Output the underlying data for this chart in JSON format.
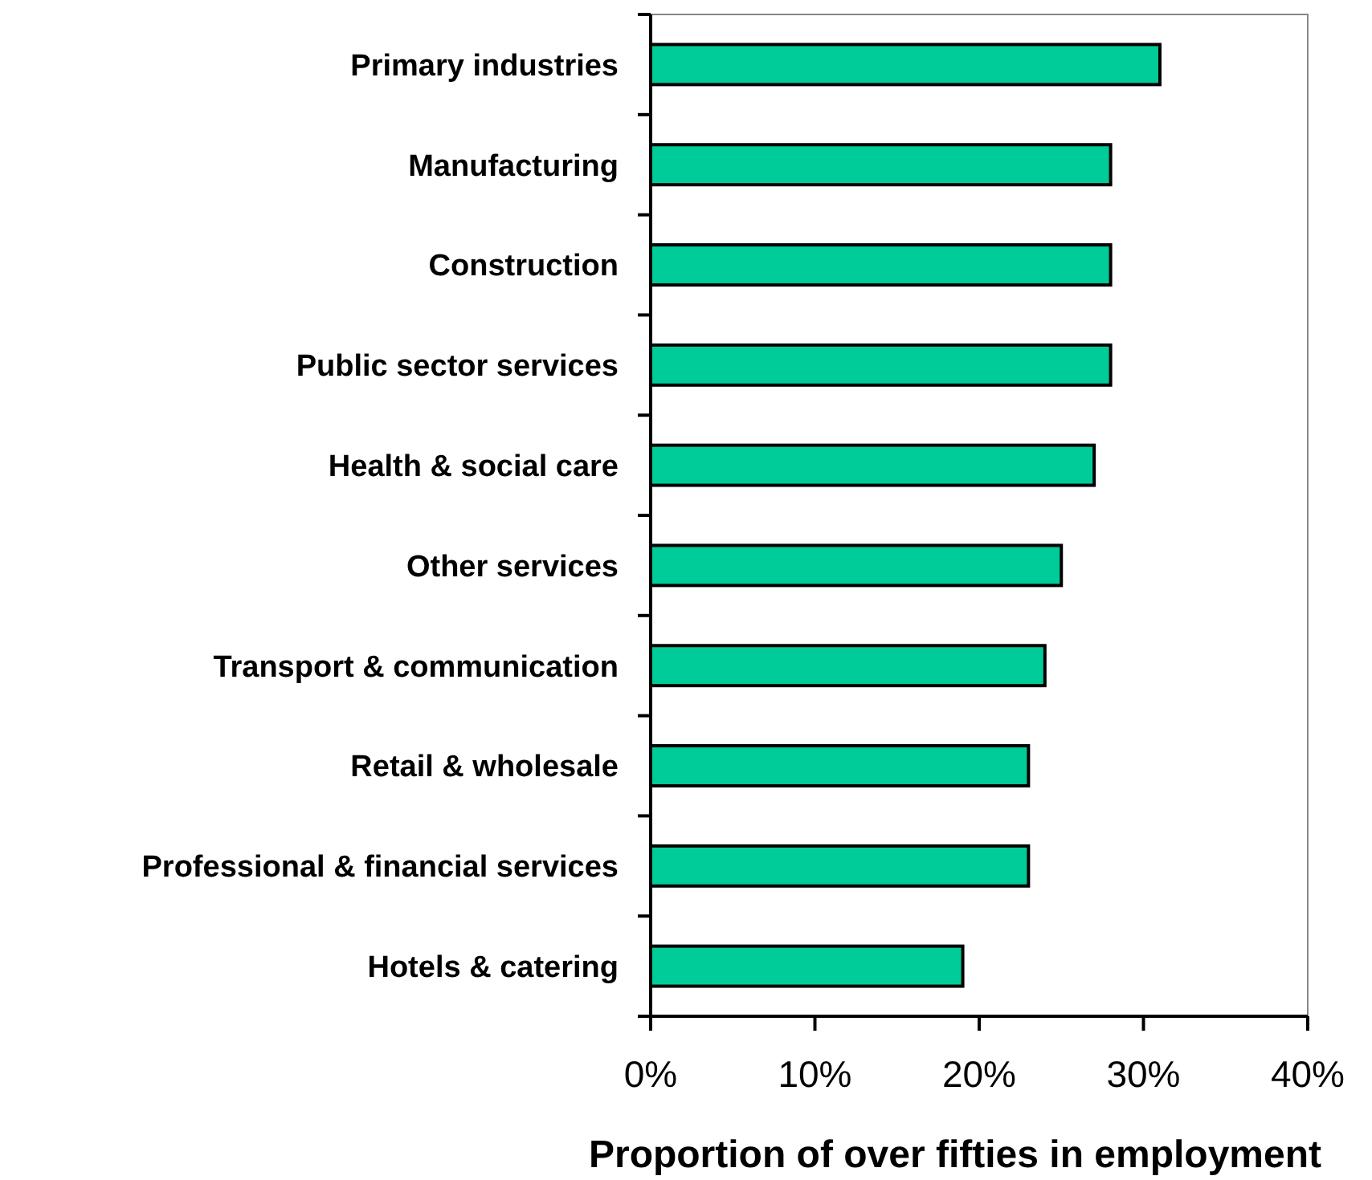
{
  "chart_data": {
    "type": "bar",
    "orientation": "horizontal",
    "xlabel": "Proportion of over fifties in employment",
    "categories": [
      "Primary industries",
      "Manufacturing",
      "Construction",
      "Public sector services",
      "Health & social care",
      "Other services",
      "Transport & communication",
      "Retail & wholesale",
      "Professional & financial services",
      "Hotels & catering"
    ],
    "values": [
      31,
      28,
      28,
      28,
      27,
      25,
      24,
      23,
      23,
      19
    ],
    "color": "#00cc99",
    "xlim": [
      0,
      40
    ],
    "xticks": [
      {
        "value": 0,
        "label": "0%"
      },
      {
        "value": 10,
        "label": "10%"
      },
      {
        "value": 20,
        "label": "20%"
      },
      {
        "value": 30,
        "label": "30%"
      },
      {
        "value": 40,
        "label": "40%"
      }
    ],
    "grid": false
  }
}
